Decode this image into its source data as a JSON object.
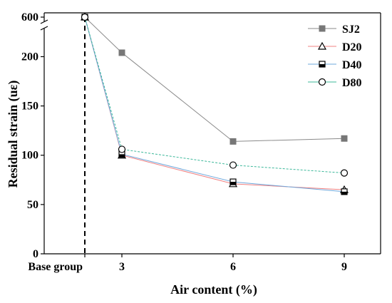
{
  "chart_data": {
    "type": "line",
    "xlabel": "Air content (%)",
    "ylabel": "Residual strain (uε)",
    "x_categories": [
      "Base group",
      "3",
      "6",
      "9"
    ],
    "y_ticks": [
      "0",
      "50",
      "100",
      "150",
      "200",
      "600"
    ],
    "y_axis_break": {
      "lower_range": [
        0,
        230
      ],
      "upper_value": 600
    },
    "legend_position": "top-right",
    "series": [
      {
        "name": "SJ2",
        "color": "#8a8a8a",
        "marker": "filled-square",
        "x": [
          "Base group",
          "3",
          "6",
          "9"
        ],
        "values": [
          600,
          204,
          114,
          117
        ]
      },
      {
        "name": "D20",
        "color": "#f08080",
        "marker": "open-triangle",
        "x": [
          "Base group",
          "3",
          "6",
          "9"
        ],
        "values": [
          600,
          100,
          71,
          65
        ]
      },
      {
        "name": "D40",
        "color": "#6fa8dc",
        "marker": "half-filled-square",
        "x": [
          "Base group",
          "3",
          "6",
          "9"
        ],
        "values": [
          600,
          101,
          73,
          63
        ]
      },
      {
        "name": "D80",
        "color": "#3cb89a",
        "marker": "open-circle",
        "x": [
          "Base group",
          "3",
          "6",
          "9"
        ],
        "values": [
          600,
          106,
          90,
          82
        ]
      }
    ],
    "base_group_dashed_line": true
  }
}
